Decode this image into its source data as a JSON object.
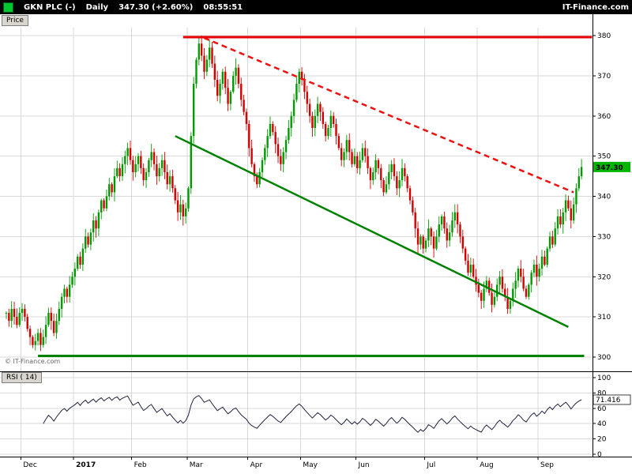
{
  "topbar": {
    "symbol": "GKN PLC (-)",
    "timeframe": "Daily",
    "quote": "347.30 (+2.60%)",
    "time": "08:55:51",
    "brand": "IT-Finance.com"
  },
  "price_pane": {
    "tab_label": "Price",
    "watermark": "© IT-Finance.com",
    "last_price_label": "347.30",
    "last_price": 347.3,
    "badge_color": "#00b400",
    "axis_ticks": [
      380,
      370,
      360,
      350,
      340,
      330,
      320,
      310,
      300
    ]
  },
  "rsi_pane": {
    "label": "RSI ( 14)",
    "value_label": "71.416",
    "axis_ticks": [
      100,
      80,
      60,
      40,
      20,
      0
    ],
    "line_color": "#22223f"
  },
  "x_axis": {
    "months": [
      {
        "label": "Dec",
        "i": 5.5
      },
      {
        "label": "2017",
        "i": 25.5,
        "bold": true
      },
      {
        "label": "Feb",
        "i": 47.5
      },
      {
        "label": "Mar",
        "i": 68.5
      },
      {
        "label": "Apr",
        "i": 91.5
      },
      {
        "label": "May",
        "i": 111.5
      },
      {
        "label": "Jun",
        "i": 132.5
      },
      {
        "label": "Jul",
        "i": 158.5
      },
      {
        "label": "Aug",
        "i": 178.5
      },
      {
        "label": "Sep",
        "i": 201.5
      }
    ]
  },
  "chart_data": {
    "type": "candlestick",
    "title": "GKN PLC (-) Daily",
    "ylabel": "Price",
    "ylim": [
      295,
      385
    ],
    "x_tick_labels": [
      "Dec",
      "2017",
      "Feb",
      "Mar",
      "Apr",
      "May",
      "Jun",
      "Jul",
      "Aug",
      "Sep"
    ],
    "up_color": "#009b00",
    "down_color": "#d40000",
    "closes": [
      311,
      309,
      312,
      310,
      308,
      311,
      312,
      310,
      307,
      305,
      303,
      304,
      306,
      303,
      305,
      308,
      311,
      309,
      306,
      309,
      312,
      315,
      317,
      315,
      318,
      320,
      322,
      325,
      323,
      327,
      330,
      328,
      331,
      334,
      332,
      336,
      339,
      337,
      340,
      343,
      341,
      345,
      347,
      345,
      348,
      350,
      352,
      349,
      346,
      348,
      350,
      347,
      344,
      346,
      349,
      351,
      348,
      345,
      347,
      349,
      346,
      343,
      345,
      342,
      339,
      336,
      338,
      335,
      337,
      342,
      355,
      368,
      374,
      378,
      375,
      371,
      374,
      377,
      373,
      369,
      365,
      368,
      371,
      367,
      363,
      366,
      370,
      372,
      368,
      364,
      361,
      358,
      352,
      348,
      345,
      343,
      346,
      349,
      352,
      355,
      358,
      356,
      353,
      350,
      348,
      351,
      354,
      357,
      360,
      364,
      368,
      371,
      369,
      366,
      363,
      360,
      357,
      360,
      363,
      361,
      358,
      355,
      357,
      360,
      358,
      355,
      352,
      349,
      351,
      354,
      351,
      348,
      350,
      347,
      349,
      352,
      350,
      347,
      344,
      346,
      349,
      347,
      344,
      341,
      343,
      346,
      348,
      345,
      342,
      344,
      347,
      345,
      342,
      339,
      336,
      332,
      328,
      330,
      327,
      329,
      332,
      330,
      327,
      330,
      333,
      335,
      332,
      329,
      331,
      334,
      336,
      333,
      330,
      327,
      324,
      321,
      323,
      320,
      318,
      316,
      314,
      317,
      319,
      316,
      313,
      315,
      318,
      320,
      317,
      315,
      312,
      314,
      317,
      319,
      322,
      320,
      317,
      315,
      318,
      321,
      323,
      320,
      322,
      325,
      323,
      327,
      330,
      328,
      332,
      335,
      333,
      336,
      339,
      337,
      334,
      338,
      342,
      345,
      347.3
    ],
    "trendlines": [
      {
        "name": "horizontal-resistance",
        "color": "#e60000",
        "width": 3,
        "dash": "",
        "from": [
          67,
          379.6
        ],
        "to": [
          222,
          379.6
        ]
      },
      {
        "name": "descending-resistance-dashed",
        "color": "#ee1111",
        "width": 2.5,
        "dash": "7 5",
        "from": [
          75,
          379.4
        ],
        "to": [
          215,
          341
        ]
      },
      {
        "name": "descending-trend",
        "color": "#008200",
        "width": 2.5,
        "dash": "",
        "from": [
          64,
          355
        ],
        "to": [
          213,
          307.5
        ]
      },
      {
        "name": "horizontal-support",
        "color": "#008200",
        "width": 3,
        "dash": "",
        "from": [
          12,
          300.3
        ],
        "to": [
          219,
          300.3
        ]
      }
    ],
    "indicator": {
      "name": "RSI",
      "period": 14,
      "last_value": 71.416
    }
  }
}
